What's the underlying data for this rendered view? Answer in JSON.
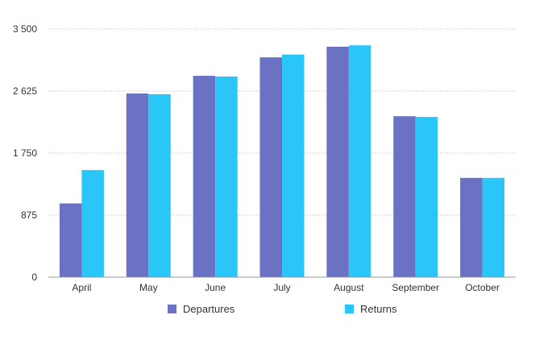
{
  "chart_data": {
    "type": "bar",
    "categories": [
      "April",
      "May",
      "June",
      "July",
      "August",
      "September",
      "October"
    ],
    "series": [
      {
        "name": "Departures",
        "color": "#6b72c4",
        "values": [
          1040,
          2590,
          2840,
          3100,
          3250,
          2270,
          1400
        ]
      },
      {
        "name": "Returns",
        "color": "#29c6f7",
        "values": [
          1510,
          2580,
          2830,
          3140,
          3270,
          2260,
          1400
        ]
      }
    ],
    "yticks": [
      "0",
      "875",
      "1 750",
      "2 625",
      "3 500"
    ],
    "ylim": [
      0,
      3500
    ],
    "grid": true,
    "legend": "bottom"
  }
}
